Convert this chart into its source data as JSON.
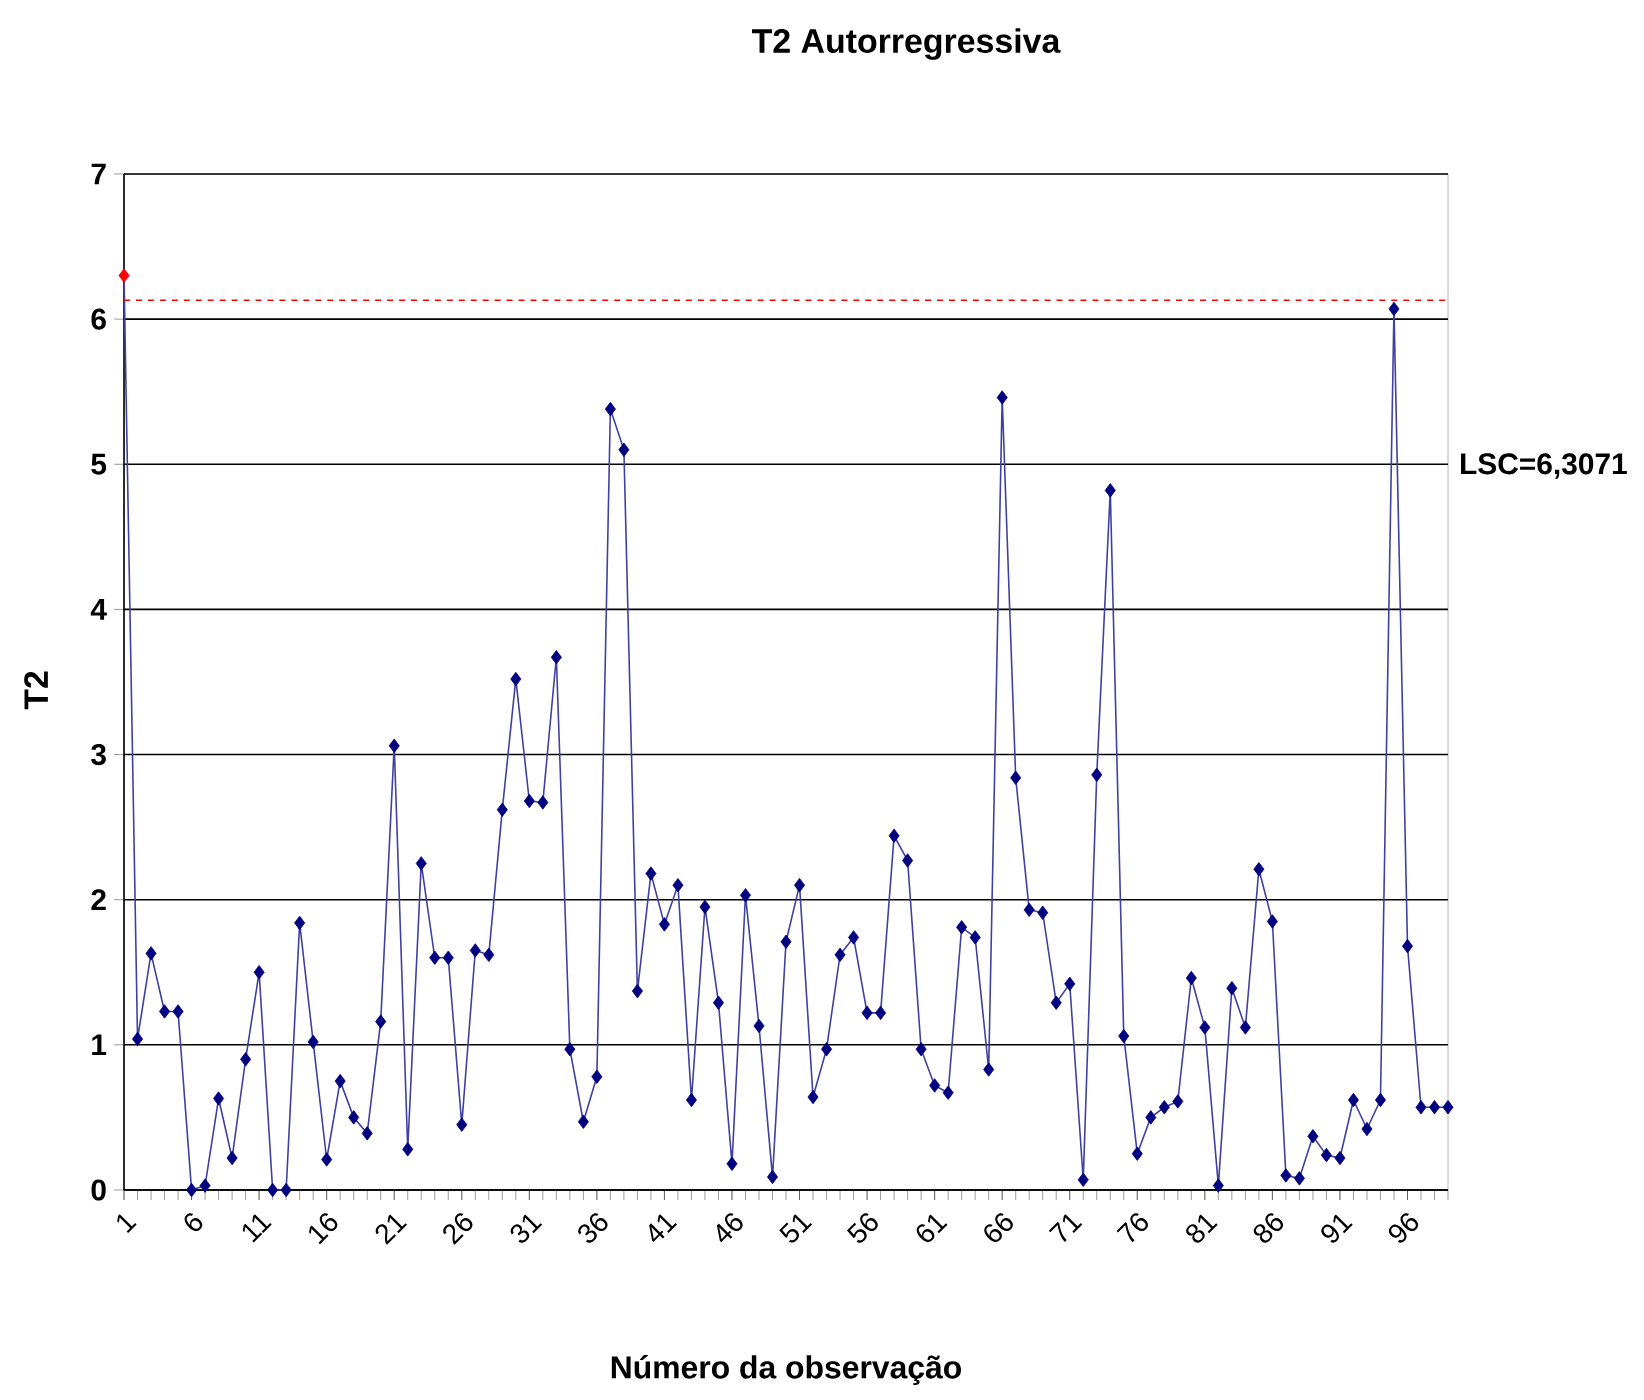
{
  "chart_data": {
    "type": "line",
    "title": "T2 Autorregressiva",
    "xlabel": "Número da observação",
    "ylabel": "T2",
    "categories": [
      "1",
      null,
      null,
      null,
      null,
      "6",
      null,
      null,
      null,
      null,
      "11",
      null,
      null,
      null,
      null,
      "16",
      null,
      null,
      null,
      null,
      "21",
      null,
      null,
      null,
      null,
      "26",
      null,
      null,
      null,
      null,
      "31",
      null,
      null,
      null,
      null,
      "36",
      null,
      null,
      null,
      null,
      "41",
      null,
      null,
      null,
      null,
      "46",
      null,
      null,
      null,
      null,
      "51",
      null,
      null,
      null,
      null,
      "56",
      null,
      null,
      null,
      null,
      "61",
      null,
      null,
      null,
      null,
      "66",
      null,
      null,
      null,
      null,
      "71",
      null,
      null,
      null,
      null,
      "76",
      null,
      null,
      null,
      null,
      "81",
      null,
      null,
      null,
      null,
      "86",
      null,
      null,
      null,
      null,
      "91",
      null,
      null,
      null,
      null,
      "96",
      null,
      null,
      null
    ],
    "series": [
      {
        "color": "#000080",
        "values": [
          6.3,
          1.04,
          1.63,
          1.23,
          1.23,
          0.0,
          0.03,
          0.63,
          0.22,
          0.9,
          1.5,
          0.0,
          0.0,
          1.84,
          1.02,
          0.21,
          0.75,
          0.5,
          0.39,
          1.16,
          3.06,
          0.28,
          2.25,
          1.6,
          1.6,
          0.45,
          1.65,
          1.62,
          2.62,
          3.52,
          2.68,
          2.67,
          3.67,
          0.97,
          0.47,
          0.78,
          5.38,
          5.1,
          1.37,
          2.18,
          1.83,
          2.1,
          0.62,
          1.95,
          1.29,
          0.18,
          2.03,
          1.13,
          0.09,
          1.71,
          2.1,
          0.64,
          0.97,
          1.62,
          1.74,
          1.22,
          1.22,
          2.44,
          2.27,
          0.97,
          0.72,
          0.67,
          1.81,
          1.74,
          0.83,
          5.46,
          2.84,
          1.93,
          1.91,
          1.29,
          1.42,
          0.07,
          2.86,
          4.82,
          1.06,
          0.25,
          0.5,
          0.57,
          0.61,
          1.46,
          1.12,
          0.03,
          1.39,
          1.12,
          2.21,
          1.85,
          0.1,
          0.08,
          0.37,
          0.24,
          0.22,
          0.62,
          0.42,
          0.62,
          6.07,
          1.68,
          0.57,
          0.57,
          0.57
        ],
        "colors": [
          "#ff0000",
          "#000080",
          "#000080",
          "#000080",
          "#000080",
          "#000080",
          "#000080",
          "#000080",
          "#000080",
          "#000080",
          "#000080",
          "#000080",
          "#000080",
          "#000080",
          "#000080",
          "#000080",
          "#000080",
          "#000080",
          "#000080",
          "#000080",
          "#000080",
          "#000080",
          "#000080",
          "#000080",
          "#000080",
          "#000080",
          "#000080",
          "#000080",
          "#000080",
          "#000080",
          "#000080",
          "#000080",
          "#000080",
          "#000080",
          "#000080",
          "#000080",
          "#000080",
          "#000080",
          "#000080",
          "#000080",
          "#000080",
          "#000080",
          "#000080",
          "#000080",
          "#000080",
          "#000080",
          "#000080",
          "#000080",
          "#000080",
          "#000080",
          "#000080",
          "#000080",
          "#000080",
          "#000080",
          "#000080",
          "#000080",
          "#000080",
          "#000080",
          "#000080",
          "#000080",
          "#000080",
          "#000080",
          "#000080",
          "#000080",
          "#000080",
          "#000080",
          "#000080",
          "#000080",
          "#000080",
          "#000080",
          "#000080",
          "#000080",
          "#000080",
          "#000080",
          "#000080",
          "#000080",
          "#000080",
          "#000080",
          "#000080",
          "#000080",
          "#000080",
          "#000080",
          "#000080",
          "#000080",
          "#000080",
          "#000080",
          "#000080",
          "#000080",
          "#000080",
          "#000080",
          "#000080",
          "#000080",
          "#000080",
          "#000080",
          "#000080",
          "#000080",
          "#000080",
          "#000080",
          "#000080"
        ]
      }
    ],
    "ylim": [
      0,
      7
    ],
    "yticks": [
      0,
      1,
      2,
      3,
      4,
      5,
      6,
      7
    ],
    "grid": "y",
    "marker": "diamond",
    "line_style": "solid",
    "ref_lines": [
      {
        "axis": "y",
        "value": 6.13,
        "color": "#ff0000",
        "line_style": "dashed"
      }
    ],
    "annotations": [
      "LSC=6,3071"
    ]
  }
}
